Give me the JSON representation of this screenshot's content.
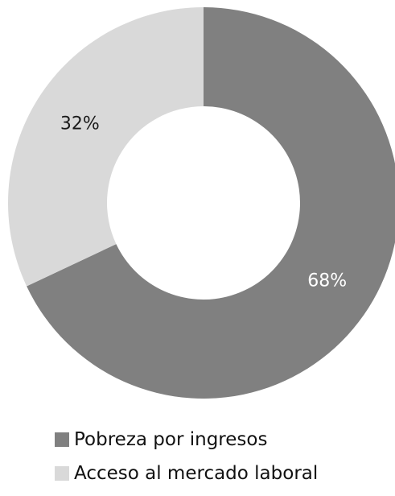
{
  "chart_data": {
    "type": "pie",
    "variant": "donut",
    "title": "",
    "categories": [
      "Pobreza por ingresos",
      "Acceso al mercado laboral"
    ],
    "values": [
      68,
      32
    ],
    "value_labels": [
      "68%",
      "32%"
    ],
    "colors": [
      "#808080",
      "#d9d9d9"
    ],
    "label_colors": [
      "#ffffff",
      "#1a1a1a"
    ],
    "legend_position": "bottom-left",
    "start": "12 o'clock, clockwise"
  }
}
